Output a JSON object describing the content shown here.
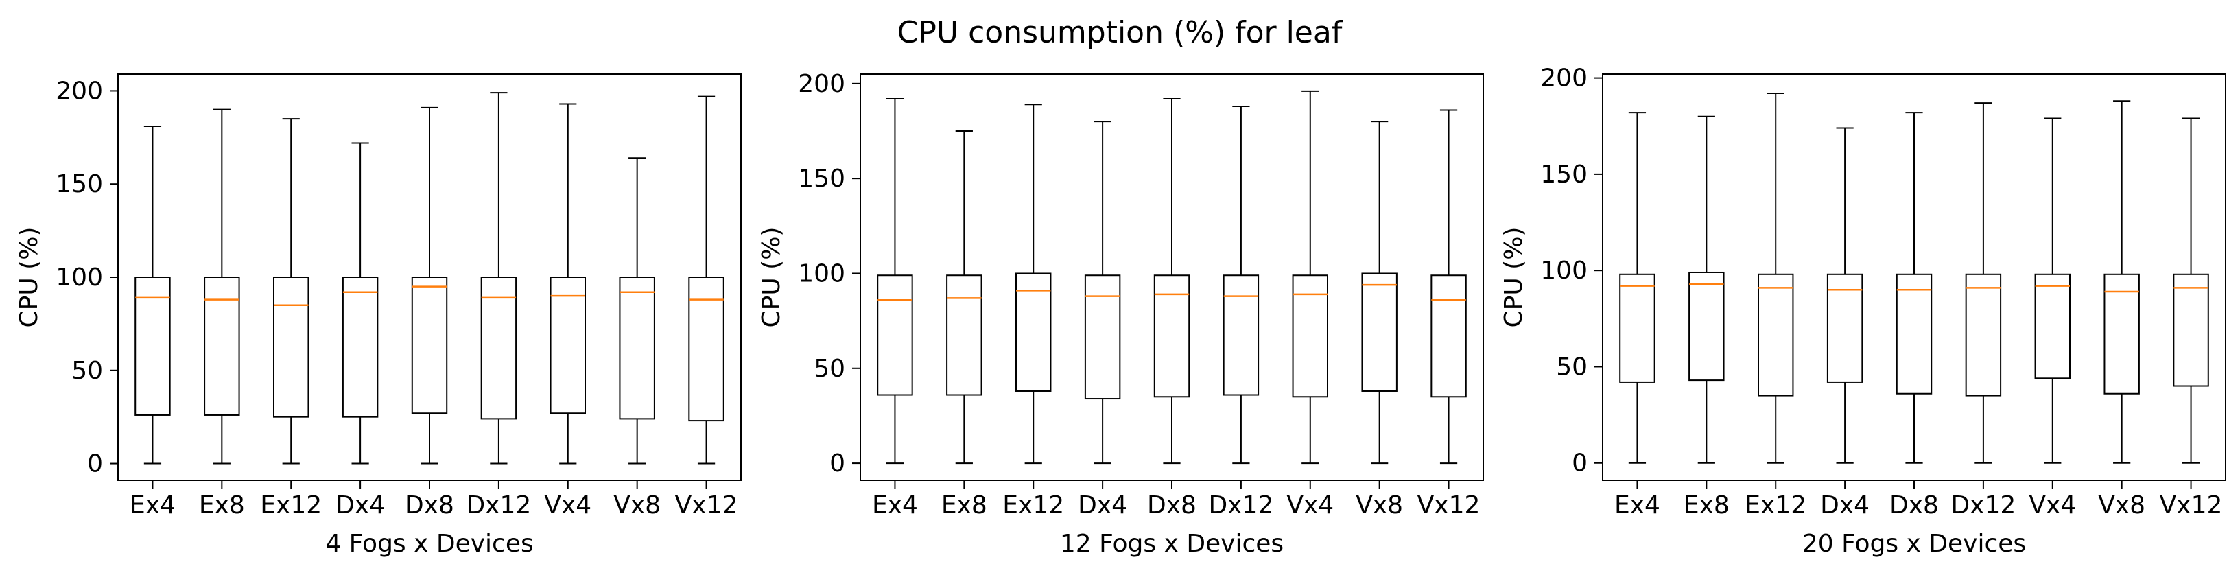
{
  "figure": {
    "title": "CPU consumption (%) for leaf"
  },
  "colors": {
    "box": "#000000",
    "median": "#ff7f0e",
    "background": "#ffffff"
  },
  "chart_data": [
    {
      "type": "boxplot",
      "xlabel": "4 Fogs x Devices",
      "ylabel": "CPU (%)",
      "ylim": [
        -9,
        209
      ],
      "yticks": [
        0,
        50,
        100,
        150,
        200
      ],
      "categories": [
        "Ex4",
        "Ex8",
        "Ex12",
        "Dx4",
        "Dx8",
        "Dx12",
        "Vx4",
        "Vx8",
        "Vx12"
      ],
      "boxes": [
        {
          "whislo": 0,
          "q1": 26,
          "med": 89,
          "q3": 100,
          "whishi": 181
        },
        {
          "whislo": 0,
          "q1": 26,
          "med": 88,
          "q3": 100,
          "whishi": 190
        },
        {
          "whislo": 0,
          "q1": 25,
          "med": 85,
          "q3": 100,
          "whishi": 185
        },
        {
          "whislo": 0,
          "q1": 25,
          "med": 92,
          "q3": 100,
          "whishi": 172
        },
        {
          "whislo": 0,
          "q1": 27,
          "med": 95,
          "q3": 100,
          "whishi": 191
        },
        {
          "whislo": 0,
          "q1": 24,
          "med": 89,
          "q3": 100,
          "whishi": 199
        },
        {
          "whislo": 0,
          "q1": 27,
          "med": 90,
          "q3": 100,
          "whishi": 193
        },
        {
          "whislo": 0,
          "q1": 24,
          "med": 92,
          "q3": 100,
          "whishi": 164
        },
        {
          "whislo": 0,
          "q1": 23,
          "med": 88,
          "q3": 100,
          "whishi": 197
        }
      ]
    },
    {
      "type": "boxplot",
      "xlabel": "12 Fogs x Devices",
      "ylabel": "CPU (%)",
      "ylim": [
        -9,
        205
      ],
      "yticks": [
        0,
        50,
        100,
        150,
        200
      ],
      "categories": [
        "Ex4",
        "Ex8",
        "Ex12",
        "Dx4",
        "Dx8",
        "Dx12",
        "Vx4",
        "Vx8",
        "Vx12"
      ],
      "boxes": [
        {
          "whislo": 0,
          "q1": 36,
          "med": 86,
          "q3": 99,
          "whishi": 192
        },
        {
          "whislo": 0,
          "q1": 36,
          "med": 87,
          "q3": 99,
          "whishi": 175
        },
        {
          "whislo": 0,
          "q1": 38,
          "med": 91,
          "q3": 100,
          "whishi": 189
        },
        {
          "whislo": 0,
          "q1": 34,
          "med": 88,
          "q3": 99,
          "whishi": 180
        },
        {
          "whislo": 0,
          "q1": 35,
          "med": 89,
          "q3": 99,
          "whishi": 192
        },
        {
          "whislo": 0,
          "q1": 36,
          "med": 88,
          "q3": 99,
          "whishi": 188
        },
        {
          "whislo": 0,
          "q1": 35,
          "med": 89,
          "q3": 99,
          "whishi": 196
        },
        {
          "whislo": 0,
          "q1": 38,
          "med": 94,
          "q3": 100,
          "whishi": 180
        },
        {
          "whislo": 0,
          "q1": 35,
          "med": 86,
          "q3": 99,
          "whishi": 186
        }
      ]
    },
    {
      "type": "boxplot",
      "xlabel": "20 Fogs x Devices",
      "ylabel": "CPU (%)",
      "ylim": [
        -9,
        202
      ],
      "yticks": [
        0,
        50,
        100,
        150,
        200
      ],
      "categories": [
        "Ex4",
        "Ex8",
        "Ex12",
        "Dx4",
        "Dx8",
        "Dx12",
        "Vx4",
        "Vx8",
        "Vx12"
      ],
      "boxes": [
        {
          "whislo": 0,
          "q1": 42,
          "med": 92,
          "q3": 98,
          "whishi": 182
        },
        {
          "whislo": 0,
          "q1": 43,
          "med": 93,
          "q3": 99,
          "whishi": 180
        },
        {
          "whislo": 0,
          "q1": 35,
          "med": 91,
          "q3": 98,
          "whishi": 192
        },
        {
          "whislo": 0,
          "q1": 42,
          "med": 90,
          "q3": 98,
          "whishi": 174
        },
        {
          "whislo": 0,
          "q1": 36,
          "med": 90,
          "q3": 98,
          "whishi": 182
        },
        {
          "whislo": 0,
          "q1": 35,
          "med": 91,
          "q3": 98,
          "whishi": 187
        },
        {
          "whislo": 0,
          "q1": 44,
          "med": 92,
          "q3": 98,
          "whishi": 179
        },
        {
          "whislo": 0,
          "q1": 36,
          "med": 89,
          "q3": 98,
          "whishi": 188
        },
        {
          "whislo": 0,
          "q1": 40,
          "med": 91,
          "q3": 98,
          "whishi": 179
        }
      ]
    }
  ]
}
